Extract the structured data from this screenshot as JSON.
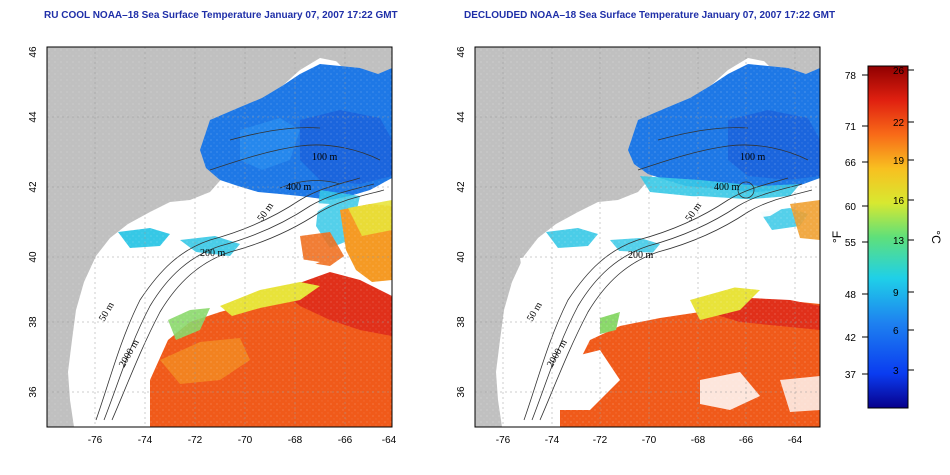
{
  "panels": [
    {
      "title": "RU COOL NOAA–18 Sea Surface Temperature January 07, 2007 17:22 GMT",
      "lat_ticks": [
        "46",
        "44",
        "42",
        "40",
        "38",
        "36"
      ],
      "lon_ticks": [
        "-76",
        "-74",
        "-72",
        "-70",
        "-68",
        "-66",
        "-64"
      ],
      "contour_labels": [
        "100 m",
        "400 m",
        "50 m",
        "200 m",
        "50 m",
        "2000 m"
      ]
    },
    {
      "title": "DECLOUDED NOAA–18 Sea Surface Temperature January 07, 2007 17:22 GMT",
      "lat_ticks": [
        "46",
        "44",
        "42",
        "40",
        "38",
        "36"
      ],
      "lon_ticks": [
        "-76",
        "-74",
        "-72",
        "-70",
        "-68",
        "-66",
        "-64"
      ],
      "contour_labels": [
        "100 m",
        "400 m",
        "50 m",
        "200 m",
        "50 m",
        "2000 m"
      ]
    }
  ],
  "colorbar": {
    "fahrenheit_ticks": [
      "78",
      "71",
      "66",
      "60",
      "55",
      "48",
      "42",
      "37"
    ],
    "celsius_ticks": [
      "26",
      "22",
      "19",
      "16",
      "13",
      "9",
      "6",
      "3"
    ],
    "fahrenheit_unit": "°F",
    "celsius_unit": "°C",
    "colors": [
      "#08008c",
      "#0a3cf0",
      "#1e82f0",
      "#1fd0e8",
      "#5fe07a",
      "#d8e830",
      "#f8c020",
      "#f86a18",
      "#e02010",
      "#900000"
    ]
  },
  "colors": {
    "land": "#c0c0c0",
    "title": "#1f2fa8",
    "cold": "#1e78e6",
    "warm": "#f05a1a",
    "cool_mid": "#36c8e6",
    "yellow": "#e8e33a"
  }
}
